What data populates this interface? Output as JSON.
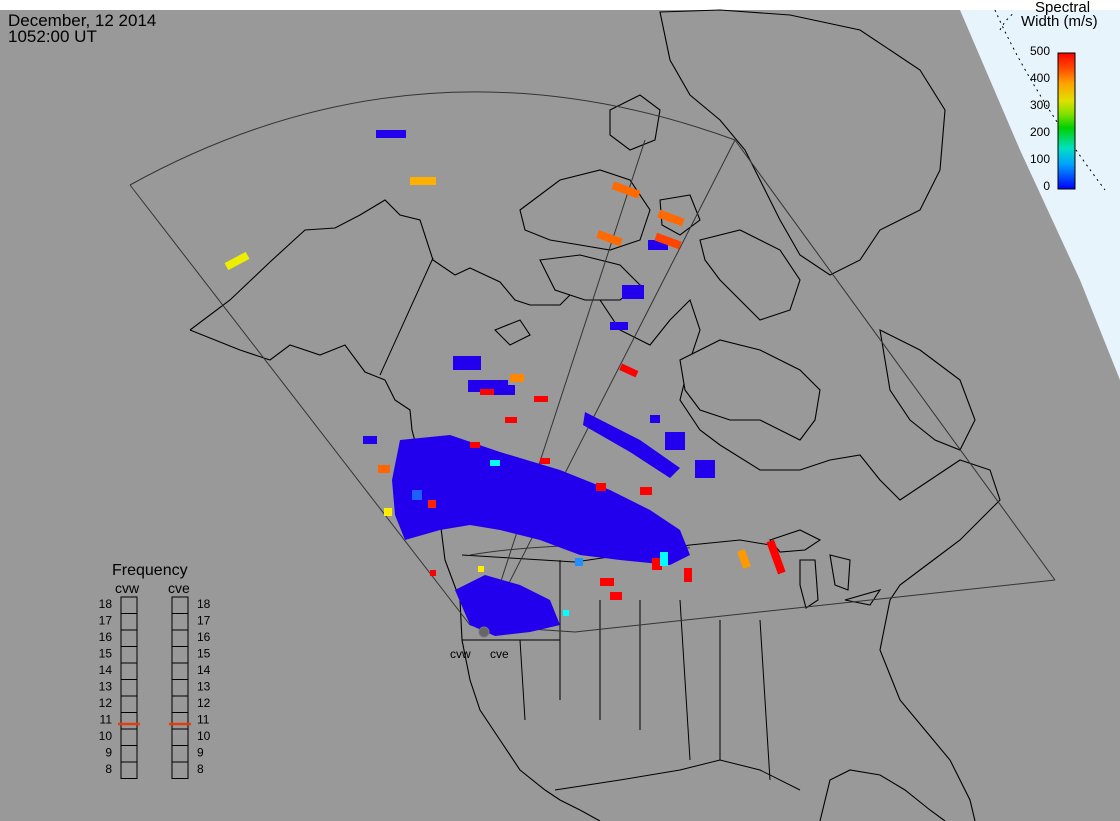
{
  "header": {
    "date": "December, 12 2014",
    "time": "1052:00 UT"
  },
  "colorbar": {
    "title_line1": "Spectral",
    "title_line2": "Width (m/s)",
    "ticks": [
      "500",
      "400",
      "300",
      "200",
      "100",
      "0"
    ],
    "colors": [
      "#0000ff",
      "#00a0ff",
      "#00e0c0",
      "#00d000",
      "#80e000",
      "#e0e000",
      "#ffa000",
      "#ff5000",
      "#ff0000"
    ]
  },
  "frequency": {
    "title": "Frequency",
    "radars": [
      {
        "name": "cvw",
        "value": 10.8
      },
      {
        "name": "cve",
        "value": 10.8
      }
    ],
    "ticks": [
      "18",
      "17",
      "16",
      "15",
      "14",
      "13",
      "12",
      "11",
      "10",
      "9",
      "8"
    ],
    "marker_color": "#e04010"
  },
  "stations": [
    {
      "name": "cvw"
    },
    {
      "name": "cve"
    }
  ],
  "colors": {
    "ocean": "#999999",
    "polar_sky": "#e8f4fb",
    "scatter_low": "#2200ee",
    "coast": "#000000"
  }
}
